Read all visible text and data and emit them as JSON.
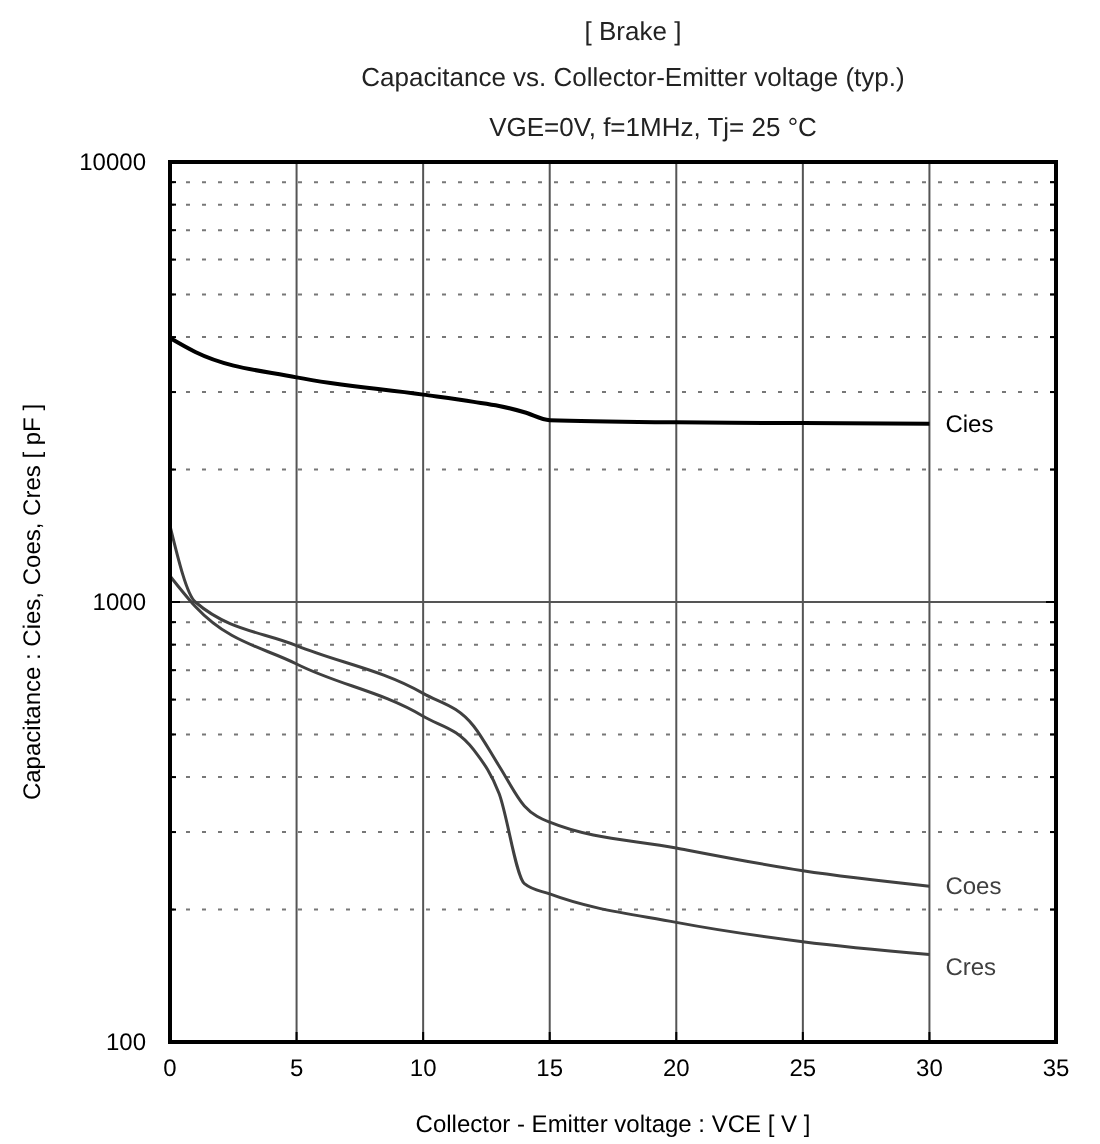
{
  "chart_data": {
    "type": "line",
    "title": "[ Brake ]",
    "subtitle": "Capacitance  vs.  Collector-Emitter voltage  (typ.)",
    "annotations": [
      "VGE=0V,  f=1MHz,  Tj= 25  °C"
    ],
    "xlabel": "Collector - Emitter voltage  :  VCE  [ V ]",
    "ylabel": "Capacitance  :  Cies, Coes, Cres  [ pF ]",
    "x": [
      0,
      1,
      5,
      10,
      12,
      13,
      14,
      15,
      20,
      25,
      30
    ],
    "series": [
      {
        "name": "Cies",
        "color": "#000000",
        "values": [
          3980,
          3700,
          3240,
          2960,
          2850,
          2790,
          2700,
          2590,
          2560,
          2550,
          2540
        ]
      },
      {
        "name": "Coes",
        "color": "#404040",
        "values": [
          1490,
          1000,
          796,
          620,
          522,
          424,
          344,
          316,
          276,
          245,
          226
        ]
      },
      {
        "name": "Cres",
        "color": "#404040",
        "values": [
          1146,
          977,
          723,
          550,
          461,
          367,
          229,
          217,
          187,
          169,
          158
        ]
      }
    ],
    "log": "y",
    "xlim": [
      0,
      35
    ],
    "xticks": [
      0,
      5,
      10,
      15,
      20,
      25,
      30,
      35
    ],
    "ylim": [
      100,
      10000
    ],
    "yticks": [
      100,
      {
        "value": 200,
        "label": null
      },
      {
        "value": 300,
        "label": null
      },
      {
        "value": 400,
        "label": null
      },
      {
        "value": 500,
        "label": null
      },
      {
        "value": 600,
        "label": null
      },
      {
        "value": 700,
        "label": null
      },
      {
        "value": 800,
        "label": null
      },
      {
        "value": 900,
        "label": null
      },
      1000,
      {
        "value": 2000,
        "label": null
      },
      {
        "value": 3000,
        "label": null
      },
      {
        "value": 4000,
        "label": null
      },
      {
        "value": 5000,
        "label": null
      },
      {
        "value": 6000,
        "label": null
      },
      {
        "value": 7000,
        "label": null
      },
      {
        "value": 8000,
        "label": null
      },
      {
        "value": 9000,
        "label": null
      },
      10000
    ],
    "grid": true,
    "marker": "none",
    "line_style": "solid"
  }
}
